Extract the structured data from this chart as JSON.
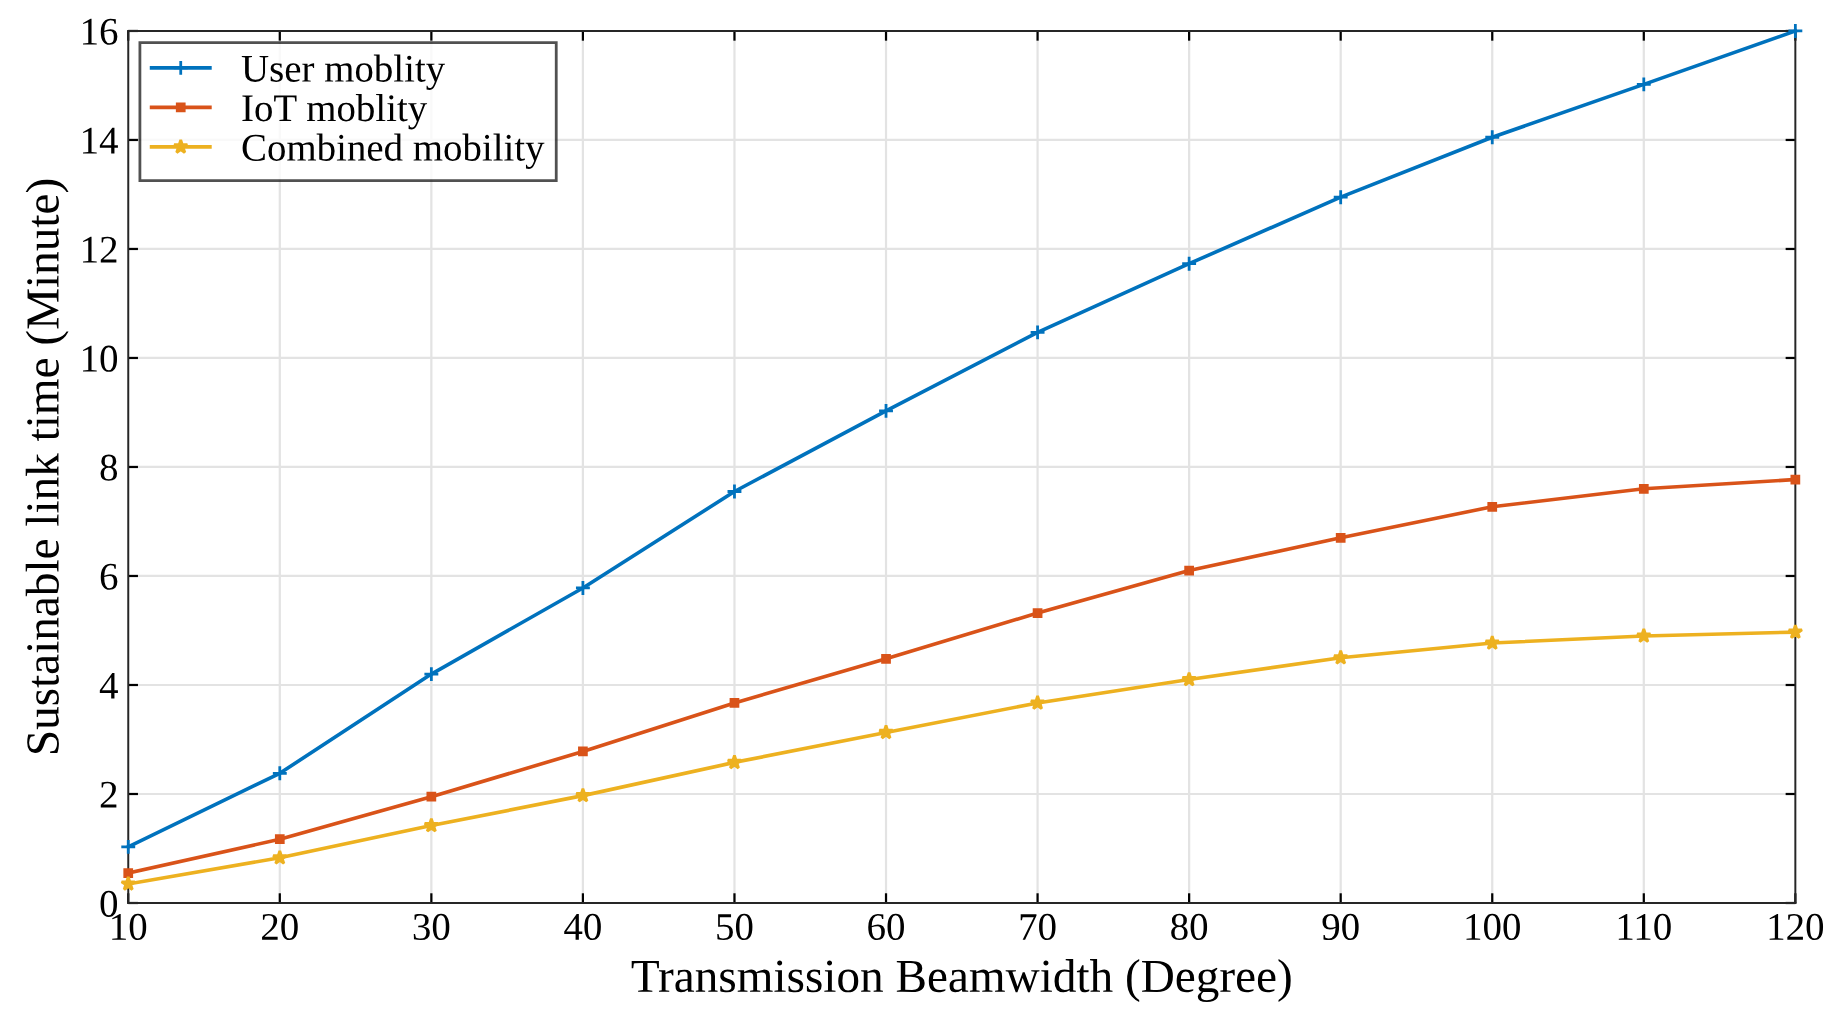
{
  "chart_data": {
    "type": "line",
    "xlabel": "Transmission Beamwidth (Degree)",
    "ylabel": "Sustainable link time (Minute)",
    "x": [
      10,
      20,
      30,
      40,
      50,
      60,
      70,
      80,
      90,
      100,
      110,
      120
    ],
    "series": [
      {
        "name": "User moblity",
        "color": "#0072bd",
        "marker": "cross",
        "values": [
          1.03,
          2.38,
          4.2,
          5.78,
          7.55,
          9.03,
          10.47,
          11.73,
          12.95,
          14.05,
          15.02,
          16.0
        ]
      },
      {
        "name": "IoT moblity",
        "color": "#d95319",
        "marker": "square",
        "values": [
          0.55,
          1.17,
          1.95,
          2.78,
          3.67,
          4.48,
          5.32,
          6.1,
          6.7,
          7.27,
          7.6,
          7.77
        ]
      },
      {
        "name": "Combined mobility",
        "color": "#edb120",
        "marker": "star",
        "values": [
          0.35,
          0.83,
          1.42,
          1.97,
          2.58,
          3.13,
          3.67,
          4.1,
          4.5,
          4.77,
          4.9,
          4.97
        ]
      }
    ],
    "xlim": [
      10,
      120
    ],
    "xticks": [
      10,
      20,
      30,
      40,
      50,
      60,
      70,
      80,
      90,
      100,
      110,
      120
    ],
    "ylim": [
      0,
      16
    ],
    "yticks": [
      0,
      2,
      4,
      6,
      8,
      10,
      12,
      14,
      16
    ],
    "grid": true,
    "legend": "top left",
    "line_style": "solid"
  }
}
